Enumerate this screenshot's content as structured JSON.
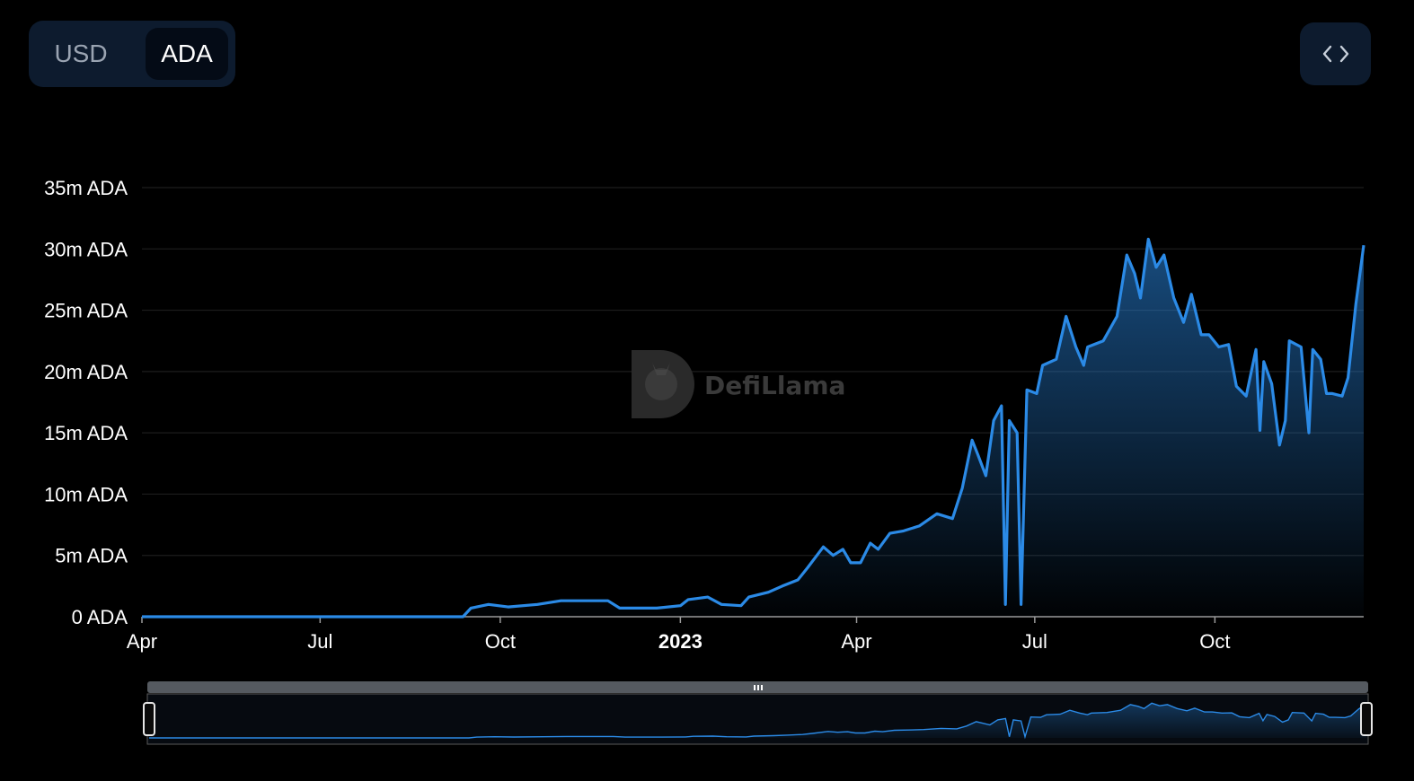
{
  "currency_toggle": {
    "options": [
      "USD",
      "ADA"
    ],
    "selected": "ADA"
  },
  "embed_button": {
    "icon": "code-icon"
  },
  "watermark": {
    "text": "DefiLlama"
  },
  "colors": {
    "line": "#2b8ae6",
    "grid": "#1c1c1c",
    "background": "#000000",
    "toggle_bg": "#0d1b2e"
  },
  "chart_data": {
    "type": "area",
    "title": "",
    "xlabel": "",
    "ylabel": "",
    "y_unit": "ADA",
    "ylim": [
      0,
      35000000
    ],
    "yticks": [
      {
        "value": 0,
        "label": "0 ADA"
      },
      {
        "value": 5000000,
        "label": "5m ADA"
      },
      {
        "value": 10000000,
        "label": "10m ADA"
      },
      {
        "value": 15000000,
        "label": "15m ADA"
      },
      {
        "value": 20000000,
        "label": "20m ADA"
      },
      {
        "value": 25000000,
        "label": "25m ADA"
      },
      {
        "value": 30000000,
        "label": "30m ADA"
      },
      {
        "value": 35000000,
        "label": "35m ADA"
      }
    ],
    "xlim": [
      "2022-04-01",
      "2023-12-16"
    ],
    "xticks": [
      {
        "date": "2022-04-01",
        "label": "Apr",
        "bold": false
      },
      {
        "date": "2022-07-01",
        "label": "Jul",
        "bold": false
      },
      {
        "date": "2022-10-01",
        "label": "Oct",
        "bold": false
      },
      {
        "date": "2023-01-01",
        "label": "2023",
        "bold": true
      },
      {
        "date": "2023-04-01",
        "label": "Apr",
        "bold": false
      },
      {
        "date": "2023-07-01",
        "label": "Jul",
        "bold": false
      },
      {
        "date": "2023-10-01",
        "label": "Oct",
        "bold": false
      }
    ],
    "grid": true,
    "legend": "none",
    "series": [
      {
        "points": [
          [
            "2022-04-01",
            0
          ],
          [
            "2022-06-01",
            0
          ],
          [
            "2022-08-01",
            0
          ],
          [
            "2022-09-12",
            0
          ],
          [
            "2022-09-16",
            700000
          ],
          [
            "2022-09-25",
            1000000
          ],
          [
            "2022-10-05",
            800000
          ],
          [
            "2022-10-20",
            1000000
          ],
          [
            "2022-11-01",
            1300000
          ],
          [
            "2022-11-25",
            1300000
          ],
          [
            "2022-12-01",
            700000
          ],
          [
            "2022-12-20",
            700000
          ],
          [
            "2023-01-01",
            900000
          ],
          [
            "2023-01-05",
            1400000
          ],
          [
            "2023-01-15",
            1600000
          ],
          [
            "2023-01-22",
            1000000
          ],
          [
            "2023-02-01",
            900000
          ],
          [
            "2023-02-05",
            1600000
          ],
          [
            "2023-02-15",
            2000000
          ],
          [
            "2023-02-22",
            2500000
          ],
          [
            "2023-03-02",
            3000000
          ],
          [
            "2023-03-07",
            4000000
          ],
          [
            "2023-03-15",
            5700000
          ],
          [
            "2023-03-20",
            5000000
          ],
          [
            "2023-03-25",
            5500000
          ],
          [
            "2023-03-29",
            4400000
          ],
          [
            "2023-04-03",
            4400000
          ],
          [
            "2023-04-08",
            6000000
          ],
          [
            "2023-04-12",
            5500000
          ],
          [
            "2023-04-18",
            6800000
          ],
          [
            "2023-04-25",
            7000000
          ],
          [
            "2023-05-03",
            7400000
          ],
          [
            "2023-05-12",
            8400000
          ],
          [
            "2023-05-20",
            8000000
          ],
          [
            "2023-05-25",
            10500000
          ],
          [
            "2023-05-30",
            14400000
          ],
          [
            "2023-06-02",
            13200000
          ],
          [
            "2023-06-06",
            11500000
          ],
          [
            "2023-06-10",
            16000000
          ],
          [
            "2023-06-14",
            17200000
          ],
          [
            "2023-06-16",
            1000000
          ],
          [
            "2023-06-18",
            16000000
          ],
          [
            "2023-06-22",
            15000000
          ],
          [
            "2023-06-24",
            1000000
          ],
          [
            "2023-06-27",
            18500000
          ],
          [
            "2023-07-02",
            18200000
          ],
          [
            "2023-07-05",
            20500000
          ],
          [
            "2023-07-12",
            21000000
          ],
          [
            "2023-07-17",
            24500000
          ],
          [
            "2023-07-22",
            22000000
          ],
          [
            "2023-07-26",
            20500000
          ],
          [
            "2023-07-28",
            22000000
          ],
          [
            "2023-08-05",
            22500000
          ],
          [
            "2023-08-12",
            24500000
          ],
          [
            "2023-08-17",
            29500000
          ],
          [
            "2023-08-21",
            28000000
          ],
          [
            "2023-08-24",
            26000000
          ],
          [
            "2023-08-28",
            30800000
          ],
          [
            "2023-09-01",
            28500000
          ],
          [
            "2023-09-05",
            29500000
          ],
          [
            "2023-09-10",
            26000000
          ],
          [
            "2023-09-15",
            24000000
          ],
          [
            "2023-09-19",
            26300000
          ],
          [
            "2023-09-24",
            23000000
          ],
          [
            "2023-09-28",
            23000000
          ],
          [
            "2023-10-03",
            22000000
          ],
          [
            "2023-10-08",
            22200000
          ],
          [
            "2023-10-12",
            18800000
          ],
          [
            "2023-10-17",
            18000000
          ],
          [
            "2023-10-22",
            21800000
          ],
          [
            "2023-10-24",
            15200000
          ],
          [
            "2023-10-26",
            20800000
          ],
          [
            "2023-10-30",
            19000000
          ],
          [
            "2023-11-03",
            14000000
          ],
          [
            "2023-11-06",
            16000000
          ],
          [
            "2023-11-08",
            22500000
          ],
          [
            "2023-11-14",
            22000000
          ],
          [
            "2023-11-18",
            15000000
          ],
          [
            "2023-11-20",
            21800000
          ],
          [
            "2023-11-24",
            21000000
          ],
          [
            "2023-11-27",
            18200000
          ],
          [
            "2023-11-30",
            18200000
          ],
          [
            "2023-12-05",
            18000000
          ],
          [
            "2023-12-08",
            19500000
          ],
          [
            "2023-12-12",
            25500000
          ],
          [
            "2023-12-16",
            30300000
          ]
        ]
      }
    ]
  }
}
